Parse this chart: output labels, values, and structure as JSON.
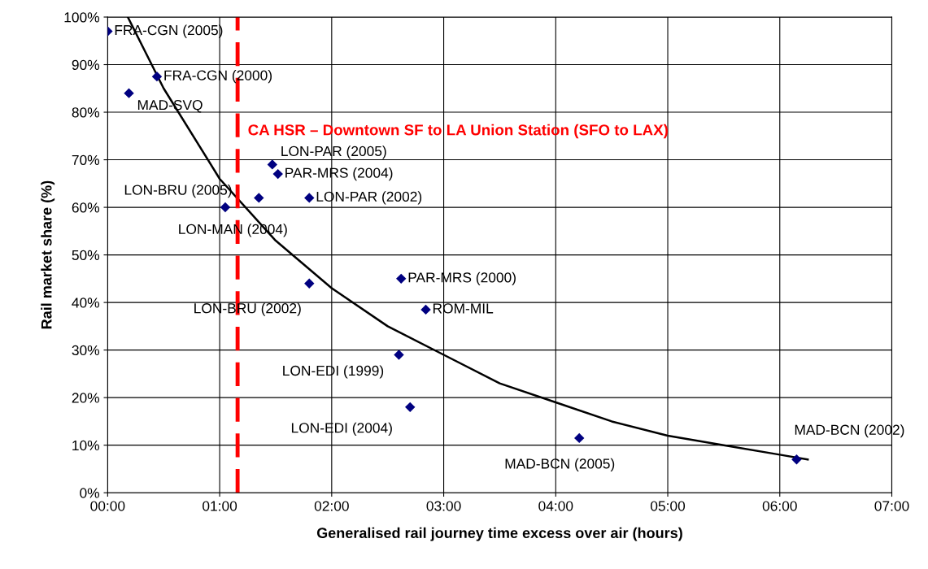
{
  "chart_data": {
    "type": "scatter",
    "xlabel": "Generalised rail journey time excess over air (hours)",
    "ylabel": "Rail market share (%)",
    "x": [
      0.0,
      0.44,
      0.19,
      1.47,
      1.52,
      1.05,
      1.35,
      1.8,
      1.8,
      2.62,
      2.84,
      2.6,
      2.7,
      4.21,
      6.15
    ],
    "series": [
      {
        "color": "#000080",
        "marker": "diamond",
        "values": [
          97,
          87.5,
          84,
          69,
          67,
          60,
          62,
          62,
          44,
          45,
          38.5,
          29,
          18,
          11.5,
          7
        ]
      },
      {
        "type": "line",
        "color": "#000000",
        "marker": "none",
        "line_style": "solid",
        "x": [
          0.18,
          0.5,
          1,
          1.5,
          2,
          2.5,
          3,
          3.5,
          4,
          4.5,
          5,
          5.5,
          6,
          6.25
        ],
        "values": [
          100,
          85,
          66,
          53,
          43,
          35,
          29,
          23,
          19,
          15,
          12,
          10,
          8,
          7
        ]
      }
    ],
    "annotations": [
      {
        "text": "FRA-CGN (2005)",
        "x": 0.0,
        "y": 97
      },
      {
        "text": "FRA-CGN (2000)",
        "x": 0.44,
        "y": 87.5
      },
      {
        "text": "MAD-SVQ",
        "x": 0.19,
        "y": 84
      },
      {
        "text": "LON-PAR (2005)",
        "x": 1.47,
        "y": 69
      },
      {
        "text": "PAR-MRS (2004)",
        "x": 1.52,
        "y": 67
      },
      {
        "text": "LON-BRU (2005)",
        "x": 1.05,
        "y": 60
      },
      {
        "text": "LON-MAN (2004)",
        "x": 1.35,
        "y": 62
      },
      {
        "text": "LON-PAR (2002)",
        "x": 1.8,
        "y": 62
      },
      {
        "text": "LON-BRU (2002)",
        "x": 1.8,
        "y": 44
      },
      {
        "text": "PAR-MRS (2000)",
        "x": 2.62,
        "y": 45
      },
      {
        "text": "ROM-MIL",
        "x": 2.84,
        "y": 38.5
      },
      {
        "text": "LON-EDI (1999)",
        "x": 2.6,
        "y": 29
      },
      {
        "text": "LON-EDI (2004)",
        "x": 2.7,
        "y": 18
      },
      {
        "text": "MAD-BCN (2005)",
        "x": 4.21,
        "y": 11.5
      },
      {
        "text": "MAD-BCN (2002)",
        "x": 6.15,
        "y": 7
      }
    ],
    "ref_lines": [
      {
        "axis": "x",
        "value": 1.16,
        "label": "CA HSR – Downtown SF to LA Union Station (SFO to LAX)",
        "color": "#ff0000",
        "line_style": "dashed"
      }
    ],
    "xlim": [
      0,
      7
    ],
    "ylim": [
      0,
      100
    ],
    "xticks": [
      {
        "value": 0,
        "label": "00:00"
      },
      {
        "value": 1,
        "label": "01:00"
      },
      {
        "value": 2,
        "label": "02:00"
      },
      {
        "value": 3,
        "label": "03:00"
      },
      {
        "value": 4,
        "label": "04:00"
      },
      {
        "value": 5,
        "label": "05:00"
      },
      {
        "value": 6,
        "label": "06:00"
      },
      {
        "value": 7,
        "label": "07:00"
      }
    ],
    "yticks": [
      {
        "value": 0,
        "label": "0%"
      },
      {
        "value": 10,
        "label": "10%"
      },
      {
        "value": 20,
        "label": "20%"
      },
      {
        "value": 30,
        "label": "30%"
      },
      {
        "value": 40,
        "label": "40%"
      },
      {
        "value": 50,
        "label": "50%"
      },
      {
        "value": 60,
        "label": "60%"
      },
      {
        "value": 70,
        "label": "70%"
      },
      {
        "value": 80,
        "label": "80%"
      },
      {
        "value": 90,
        "label": "90%"
      },
      {
        "value": 100,
        "label": "100%"
      }
    ],
    "grid": true,
    "legend": false
  }
}
